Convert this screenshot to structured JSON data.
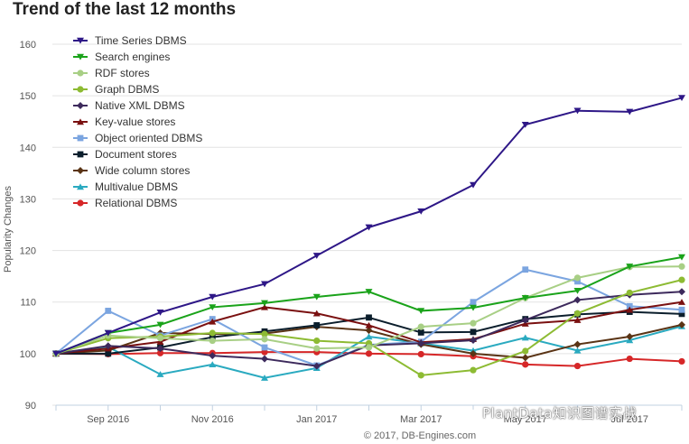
{
  "title": "Trend of the last 12 months",
  "watermark": "PlantData知识图谱实战",
  "copyright": "© 2017, DB-Engines.com",
  "chart_data": {
    "type": "line",
    "title": "Trend of the last 12 months",
    "xlabel": "",
    "ylabel": "Popularity Changes",
    "ylim": [
      90,
      160
    ],
    "yticks": [
      90,
      100,
      110,
      120,
      130,
      140,
      150,
      160
    ],
    "x": [
      "Aug 2016",
      "Sep 2016",
      "Oct 2016",
      "Nov 2016",
      "Dec 2016",
      "Jan 2017",
      "Feb 2017",
      "Mar 2017",
      "Apr 2017",
      "May 2017",
      "Jun 2017",
      "Jul 2017",
      "Aug 2017"
    ],
    "xtick_labels": [
      {
        "index": 1,
        "label": "Sep 2016"
      },
      {
        "index": 3,
        "label": "Nov 2016"
      },
      {
        "index": 5,
        "label": "Jan 2017"
      },
      {
        "index": 7,
        "label": "Mar 2017"
      },
      {
        "index": 9,
        "label": "May 2017"
      },
      {
        "index": 11,
        "label": "Jul 2017"
      }
    ],
    "grid": true,
    "legend_position": "top-left",
    "series": [
      {
        "name": "Time Series DBMS",
        "color": "#2e1787",
        "marker": "triangle-down",
        "values": [
          100,
          104,
          108,
          111,
          113.5,
          119,
          124.5,
          127.6,
          132.7,
          144.4,
          147.1,
          146.9,
          149.6
        ]
      },
      {
        "name": "Search engines",
        "color": "#1aa31a",
        "marker": "triangle-down",
        "values": [
          100,
          104,
          105.6,
          109,
          109.8,
          111,
          112,
          108.3,
          108.9,
          110.8,
          112.2,
          116.9,
          118.7
        ]
      },
      {
        "name": "RDF stores",
        "color": "#a8cf85",
        "marker": "circle",
        "values": [
          100,
          103.5,
          103,
          102.5,
          102.8,
          101,
          101.2,
          105.2,
          105.9,
          110.8,
          114.7,
          116.8,
          116.9
        ]
      },
      {
        "name": "Graph DBMS",
        "color": "#8dbb33",
        "marker": "circle",
        "values": [
          100,
          103,
          103.3,
          104,
          103.8,
          102.5,
          102,
          95.8,
          96.8,
          100.5,
          107.8,
          111.8,
          114.3
        ]
      },
      {
        "name": "Native XML DBMS",
        "color": "#3d2a5c",
        "marker": "diamond",
        "values": [
          100,
          101.5,
          101,
          99.6,
          99,
          97.6,
          101.6,
          102,
          102.6,
          106.5,
          110.4,
          111.4,
          112
        ]
      },
      {
        "name": "Key-value stores",
        "color": "#7a1010",
        "marker": "triangle",
        "values": [
          100,
          101,
          102.3,
          106.2,
          109,
          107.8,
          105.5,
          102.2,
          102.8,
          105.8,
          106.5,
          108.5,
          110
        ]
      },
      {
        "name": "Object oriented DBMS",
        "color": "#7ba5e0",
        "marker": "square",
        "values": [
          100,
          108.3,
          103.5,
          106.7,
          101.2,
          97.7,
          101.7,
          102.3,
          110,
          116.3,
          114,
          109.2,
          108.5
        ]
      },
      {
        "name": "Document stores",
        "color": "#0b1e2c",
        "marker": "square",
        "values": [
          100,
          100,
          101.2,
          103.2,
          104.3,
          105.5,
          107,
          104.1,
          104.2,
          106.7,
          107.6,
          108.1,
          107.7
        ]
      },
      {
        "name": "Wide column stores",
        "color": "#5a3415",
        "marker": "diamond",
        "values": [
          100,
          100.6,
          104,
          103.8,
          103.9,
          105.2,
          104.5,
          101.8,
          100,
          99.2,
          101.8,
          103.3,
          105.6
        ]
      },
      {
        "name": "Multivalue DBMS",
        "color": "#2aaac0",
        "marker": "triangle",
        "values": [
          100,
          101.3,
          96,
          97.9,
          95.3,
          97.2,
          103.3,
          102,
          100.6,
          103.1,
          100.6,
          102.6,
          105.3
        ]
      },
      {
        "name": "Relational DBMS",
        "color": "#d62728",
        "marker": "circle",
        "values": [
          100,
          99.9,
          100.1,
          100.1,
          100.3,
          100.3,
          100,
          99.9,
          99.5,
          97.9,
          97.6,
          99,
          98.5
        ]
      }
    ]
  }
}
